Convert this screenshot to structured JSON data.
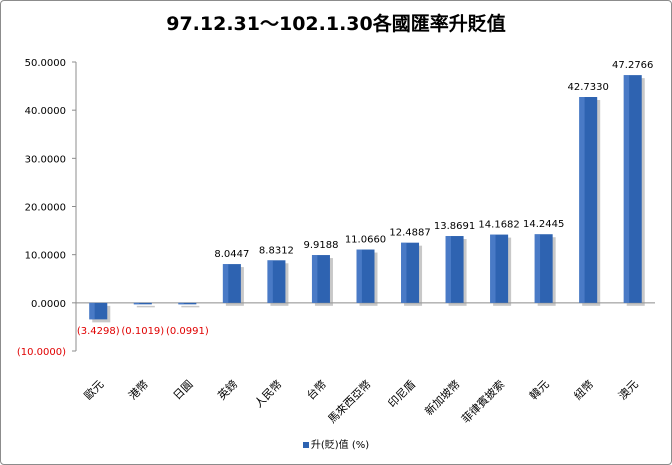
{
  "chart_data": {
    "type": "bar",
    "title": "97.12.31～102.1.30各國匯率升貶值",
    "categories": [
      "歐元",
      "港幣",
      "日圓",
      "英鎊",
      "人民幣",
      "台幣",
      "馬來西亞幣",
      "印尼盾",
      "新加坡幣",
      "菲律賓披索",
      "韓元",
      "紐幣",
      "澳元"
    ],
    "series": [
      {
        "name": "升(貶)值 (%)",
        "values": [
          -3.4298,
          -0.1019,
          -0.0991,
          8.0447,
          8.8312,
          9.9188,
          11.066,
          12.4887,
          13.8691,
          14.1682,
          14.2445,
          42.733,
          47.2766
        ]
      }
    ],
    "value_labels": [
      "(3.4298)",
      "(0.1019)",
      "(0.0991)",
      "8.0447",
      "8.8312",
      "9.9188",
      "11.0660",
      "12.4887",
      "13.8691",
      "14.1682",
      "14.2445",
      "42.7330",
      "47.2766"
    ],
    "ylim": [
      -10,
      50
    ],
    "yticks": [
      -10,
      0,
      10,
      20,
      30,
      40,
      50
    ],
    "ytick_labels": [
      "(10.0000)",
      "0.0000",
      "10.0000",
      "20.0000",
      "30.0000",
      "40.0000",
      "50.0000"
    ],
    "grid": false,
    "legend": "bottom",
    "bar_color": "#2e63b1",
    "negative_label_color": "#e00000",
    "xlabel": "",
    "ylabel": ""
  }
}
